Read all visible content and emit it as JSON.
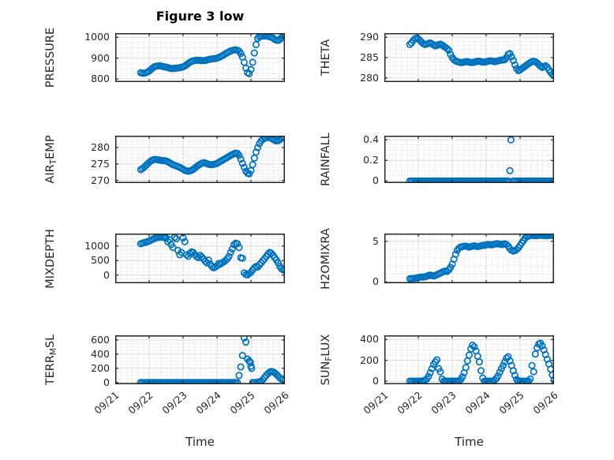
{
  "title": "Figure 3 low",
  "xlabel": "Time",
  "colors": {
    "marker": "#0072BD",
    "axis": "#262626",
    "major_grid": "#dcdcdc",
    "minor_grid": "#c9c9c9",
    "background": "#ffffff",
    "text": "#262626"
  },
  "x_axis": {
    "tick_values": [
      0,
      1,
      2,
      3,
      4,
      5
    ],
    "tick_labels": [
      "09/21",
      "09/22",
      "09/23",
      "09/24",
      "09/25",
      "09/26"
    ],
    "minor_divisions_per_day": 6,
    "range_days": [
      0,
      5
    ]
  },
  "time_base": {
    "t0": 0.75,
    "dt": 0.05,
    "unit": "days after 09/21"
  },
  "chart_data": [
    {
      "id": "pressure",
      "type": "scatter",
      "row": 0,
      "col": 0,
      "ylabel": "PRESSURE",
      "label_parts": [
        {
          "t": "PRESSURE"
        }
      ],
      "ylim": [
        785,
        1020
      ],
      "yticks": [
        800,
        900,
        1000
      ],
      "ytick_labels": [
        "800",
        "900",
        "1000"
      ],
      "minor_y": 25,
      "values": [
        830,
        828,
        827,
        830,
        833,
        838,
        845,
        852,
        858,
        861,
        862,
        863,
        862,
        860,
        858,
        857,
        855,
        852,
        850,
        850,
        851,
        852,
        853,
        854,
        856,
        858,
        862,
        868,
        874,
        880,
        884,
        887,
        889,
        890,
        890,
        889,
        888,
        888,
        889,
        891,
        893,
        895,
        896,
        897,
        898,
        900,
        903,
        907,
        911,
        916,
        921,
        926,
        930,
        934,
        937,
        939,
        940,
        938,
        933,
        922,
        905,
        880,
        852,
        830,
        825,
        845,
        880,
        925,
        965,
        995,
        1003,
        1005,
        1006,
        1007,
        1006,
        1005,
        1003,
        1000,
        996,
        990,
        986,
        985,
        990,
        998,
        1006,
        1010
      ]
    },
    {
      "id": "theta",
      "type": "scatter",
      "row": 0,
      "col": 1,
      "ylabel": "THETA",
      "label_parts": [
        {
          "t": "THETA"
        }
      ],
      "ylim": [
        279,
        291
      ],
      "yticks": [
        280,
        285,
        290
      ],
      "ytick_labels": [
        "280",
        "285",
        "290"
      ],
      "minor_y": 1,
      "values": [
        288.2,
        288.6,
        289.2,
        289.6,
        289.8,
        289.6,
        289.2,
        288.8,
        288.4,
        288.2,
        288.3,
        288.5,
        288.6,
        288.4,
        288.1,
        287.9,
        288.0,
        288.2,
        288.3,
        288.1,
        287.8,
        287.5,
        287.2,
        286.8,
        285.8,
        285.0,
        284.5,
        284.2,
        284.0,
        283.9,
        283.8,
        283.8,
        283.9,
        284.0,
        284.0,
        283.9,
        283.8,
        283.8,
        283.9,
        284.0,
        284.1,
        284.1,
        284.0,
        283.9,
        283.9,
        284.0,
        284.1,
        284.2,
        284.2,
        284.1,
        284.0,
        284.1,
        284.2,
        284.3,
        284.4,
        284.4,
        284.5,
        285.0,
        285.8,
        286.0,
        285.2,
        284.3,
        283.2,
        282.3,
        281.8,
        282.0,
        282.3,
        282.6,
        282.9,
        283.2,
        283.5,
        283.8,
        284.0,
        284.1,
        284.0,
        283.7,
        283.3,
        282.9,
        282.6,
        282.8,
        283.0,
        282.6,
        282.0,
        281.4,
        280.9,
        280.7
      ]
    },
    {
      "id": "air_temp",
      "type": "scatter",
      "row": 1,
      "col": 0,
      "ylabel": "AIR_TEMP",
      "label_parts": [
        {
          "t": "AIR"
        },
        {
          "t": "T",
          "sub": true
        },
        {
          "t": "EMP"
        }
      ],
      "ylim": [
        269.2,
        283.6
      ],
      "yticks": [
        270,
        275,
        280
      ],
      "ytick_labels": [
        "270",
        "275",
        "280"
      ],
      "minor_y": 1,
      "values": [
        273.3,
        273.6,
        274.0,
        274.5,
        275.0,
        275.5,
        275.9,
        276.2,
        276.4,
        276.4,
        276.3,
        276.2,
        276.1,
        276.0,
        276.0,
        275.9,
        275.7,
        275.4,
        275.1,
        274.8,
        274.6,
        274.4,
        274.2,
        274.0,
        273.7,
        273.4,
        273.1,
        272.9,
        272.8,
        272.9,
        273.1,
        273.4,
        273.8,
        274.2,
        274.6,
        274.9,
        275.2,
        275.4,
        275.3,
        275.1,
        274.9,
        274.8,
        274.8,
        274.9,
        275.0,
        275.2,
        275.5,
        275.8,
        276.1,
        276.4,
        276.7,
        277.0,
        277.3,
        277.6,
        277.9,
        278.1,
        278.3,
        278.2,
        277.6,
        276.5,
        275.2,
        274.0,
        272.8,
        272.2,
        272.0,
        273.0,
        274.8,
        276.8,
        278.6,
        280.0,
        281.2,
        282.0,
        282.5,
        282.8,
        283.0,
        283.1,
        283.0,
        282.8,
        282.5,
        282.2,
        282.0,
        282.1,
        282.4,
        282.8,
        283.1,
        283.3
      ]
    },
    {
      "id": "rainfall",
      "type": "scatter",
      "row": 1,
      "col": 1,
      "ylabel": "RAINFALL",
      "label_parts": [
        {
          "t": "RAINFALL"
        }
      ],
      "ylim": [
        -0.02,
        0.44
      ],
      "yticks": [
        0,
        0.2,
        0.4
      ],
      "ytick_labels": [
        "0",
        "0.2",
        "0.4"
      ],
      "minor_y": 0.05,
      "values": [
        0,
        0,
        0,
        0,
        0,
        0,
        0,
        0,
        0,
        0,
        0,
        0,
        0,
        0,
        0,
        0,
        0,
        0,
        0,
        0,
        0,
        0,
        0,
        0,
        0,
        0,
        0,
        0,
        0,
        0,
        0,
        0,
        0,
        0,
        0,
        0,
        0,
        0,
        0,
        0,
        0,
        0,
        0,
        0,
        0,
        0,
        0,
        0,
        0,
        0,
        0,
        0,
        0,
        0,
        0,
        0,
        0,
        0,
        0,
        null,
        null,
        0,
        0,
        0,
        0,
        0,
        0,
        0,
        0,
        0,
        0,
        0,
        0,
        0,
        0,
        0,
        0,
        0,
        0,
        0,
        0,
        0,
        0,
        0,
        0,
        0
      ],
      "extra_points": [
        [
          3.7,
          0.1
        ],
        [
          3.73,
          0.4
        ]
      ]
    },
    {
      "id": "mixdepth",
      "type": "scatter",
      "row": 2,
      "col": 0,
      "ylabel": "MIXDEPTH",
      "label_parts": [
        {
          "t": "MIXDEPTH"
        }
      ],
      "ylim": [
        -280,
        1430
      ],
      "yticks": [
        0,
        500,
        1000
      ],
      "ytick_labels": [
        "0",
        "500",
        "1000"
      ],
      "minor_y": 125,
      "values": [
        1080,
        1100,
        1120,
        1130,
        1150,
        1170,
        1200,
        1230,
        1260,
        1280,
        1290,
        1300,
        1310,
        1300,
        1290,
        1280,
        1150,
        1220,
        1050,
        950,
        1300,
        1250,
        850,
        700,
        780,
        1280,
        1150,
        700,
        650,
        750,
        800,
        780,
        700,
        640,
        600,
        680,
        620,
        560,
        480,
        420,
        520,
        380,
        300,
        250,
        280,
        320,
        400,
        380,
        420,
        460,
        500,
        560,
        640,
        780,
        900,
        1050,
        1100,
        1080,
        950,
        600,
        580,
        80,
        20,
        10,
        60,
        100,
        180,
        250,
        300,
        280,
        350,
        420,
        500,
        560,
        640,
        720,
        780,
        750,
        680,
        600,
        520,
        420,
        300,
        220,
        180,
        160
      ]
    },
    {
      "id": "h2omixra",
      "type": "scatter",
      "row": 2,
      "col": 1,
      "ylabel": "H2OMIXRA",
      "label_parts": [
        {
          "t": "H2OMIXRA"
        }
      ],
      "ylim": [
        -0.15,
        5.95
      ],
      "yticks": [
        0,
        5
      ],
      "ytick_labels": [
        "0",
        "5"
      ],
      "minor_y": 1,
      "values": [
        0.4,
        0.42,
        0.45,
        0.45,
        0.5,
        0.55,
        0.6,
        0.62,
        0.6,
        0.65,
        0.7,
        0.8,
        0.85,
        0.8,
        0.75,
        0.8,
        0.9,
        1.0,
        1.1,
        1.2,
        1.3,
        1.35,
        1.3,
        1.5,
        1.8,
        2.2,
        2.8,
        3.4,
        3.9,
        4.15,
        4.3,
        4.35,
        4.4,
        4.4,
        4.35,
        4.3,
        4.35,
        4.4,
        4.45,
        4.4,
        4.35,
        4.4,
        4.45,
        4.5,
        4.5,
        4.55,
        4.6,
        4.6,
        4.55,
        4.6,
        4.65,
        4.7,
        4.7,
        4.65,
        4.6,
        4.65,
        4.7,
        4.6,
        4.4,
        4.1,
        3.9,
        3.8,
        3.85,
        4.0,
        4.2,
        4.5,
        4.8,
        5.1,
        5.4,
        5.55,
        5.65,
        5.7,
        5.72,
        5.7,
        5.68,
        5.7,
        5.72,
        5.75,
        5.72,
        5.7,
        5.68,
        5.7,
        5.72,
        5.75,
        5.7,
        5.65
      ]
    },
    {
      "id": "terr_msl",
      "type": "scatter",
      "row": 3,
      "col": 0,
      "ylabel": "TERR_MSL",
      "label_parts": [
        {
          "t": "TERR"
        },
        {
          "t": "M",
          "sub": true
        },
        {
          "t": "SL"
        }
      ],
      "ylim": [
        -25,
        665
      ],
      "yticks": [
        0,
        200,
        400,
        600
      ],
      "ytick_labels": [
        "0",
        "200",
        "400",
        "600"
      ],
      "minor_y": 50,
      "values": [
        0,
        0,
        0,
        0,
        0,
        0,
        0,
        0,
        0,
        0,
        0,
        0,
        0,
        0,
        0,
        0,
        0,
        0,
        0,
        0,
        0,
        0,
        0,
        0,
        0,
        0,
        0,
        0,
        0,
        0,
        0,
        0,
        0,
        0,
        0,
        0,
        0,
        0,
        0,
        0,
        0,
        0,
        0,
        0,
        0,
        0,
        0,
        0,
        0,
        0,
        0,
        0,
        0,
        0,
        0,
        0,
        0,
        0,
        100,
        220,
        380,
        630,
        570,
        330,
        300,
        230,
        0,
        0,
        0,
        5,
        10,
        20,
        40,
        70,
        100,
        125,
        145,
        155,
        150,
        135,
        115,
        90,
        65,
        45,
        50,
        40
      ],
      "extra_points": [
        [
          3.98,
          290
        ],
        [
          4.02,
          200
        ]
      ]
    },
    {
      "id": "sun_flux",
      "type": "scatter",
      "row": 3,
      "col": 1,
      "ylabel": "SUN_FLUX",
      "label_parts": [
        {
          "t": "SUN"
        },
        {
          "t": "F",
          "sub": true
        },
        {
          "t": "LUX"
        }
      ],
      "ylim": [
        -30,
        440
      ],
      "yticks": [
        0,
        200,
        400
      ],
      "ytick_labels": [
        "0",
        "200",
        "400"
      ],
      "minor_y": 50,
      "values": [
        0,
        0,
        0,
        0,
        0,
        0,
        0,
        0,
        5,
        10,
        20,
        45,
        80,
        120,
        160,
        185,
        205,
        120,
        90,
        20,
        0,
        0,
        0,
        0,
        0,
        0,
        0,
        0,
        0,
        5,
        15,
        40,
        80,
        130,
        195,
        250,
        310,
        345,
        330,
        290,
        240,
        185,
        100,
        30,
        0,
        0,
        0,
        0,
        0,
        0,
        10,
        25,
        50,
        85,
        120,
        150,
        185,
        220,
        235,
        195,
        150,
        100,
        55,
        15,
        0,
        0,
        0,
        0,
        0,
        0,
        0,
        20,
        150,
        90,
        260,
        320,
        355,
        365,
        340,
        300,
        255,
        210,
        165,
        115,
        60,
        10
      ]
    }
  ]
}
